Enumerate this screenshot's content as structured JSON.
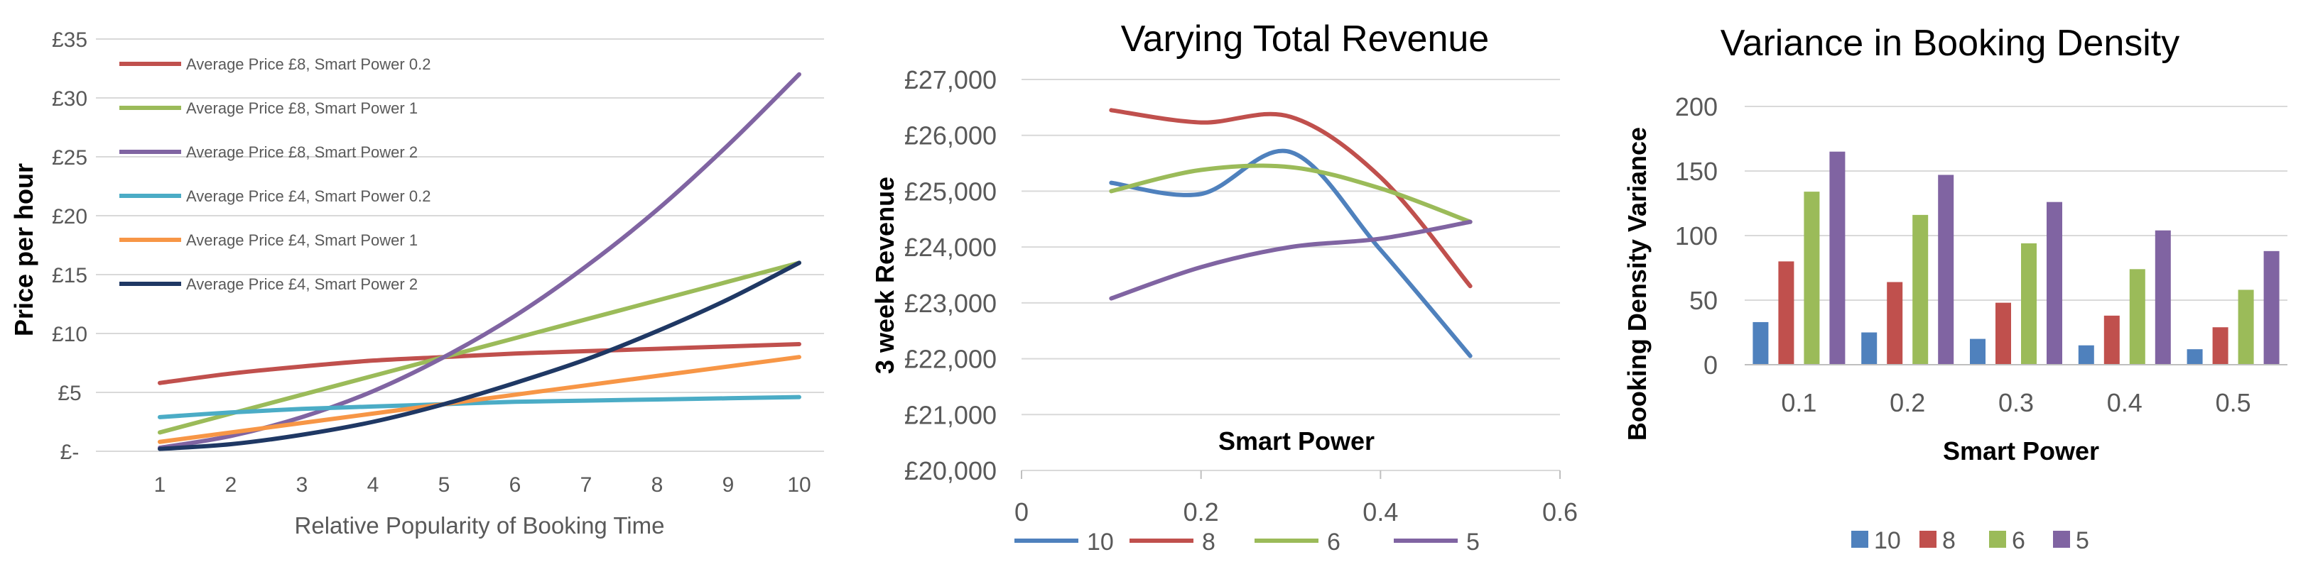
{
  "colors": {
    "red": "#c0504d",
    "green": "#9bbb59",
    "purple": "#8064a2",
    "cyan": "#4bacc6",
    "orange": "#f79646",
    "navy": "#1f3864",
    "blue": "#4f81bd",
    "grid": "#d9d9d9",
    "axis": "#bfbfbf",
    "tick": "#595959"
  },
  "chart_data": [
    {
      "type": "line",
      "title": "",
      "xlabel": "Relative Popularity of Booking Time",
      "ylabel": "Price per hour",
      "x": [
        1,
        2,
        3,
        4,
        5,
        6,
        7,
        8,
        9,
        10
      ],
      "xlim": [
        1,
        10
      ],
      "ylim": [
        0,
        35
      ],
      "y_ticks": [
        0,
        5,
        10,
        15,
        20,
        25,
        30,
        35
      ],
      "y_tick_labels": [
        "£-",
        "£5",
        "£10",
        "£15",
        "£20",
        "£25",
        "£30",
        "£35"
      ],
      "x_tick_labels": [
        "1",
        "2",
        "3",
        "4",
        "5",
        "6",
        "7",
        "8",
        "9",
        "10"
      ],
      "grid": true,
      "legend": "top-left",
      "series": [
        {
          "name": "Average Price £8, Smart Power 0.2",
          "color": "#c0504d",
          "values": [
            5.8,
            6.6,
            7.2,
            7.7,
            8.0,
            8.3,
            8.5,
            8.7,
            8.9,
            9.1
          ]
        },
        {
          "name": "Average Price £8, Smart Power 1",
          "color": "#9bbb59",
          "values": [
            1.6,
            3.2,
            4.8,
            6.4,
            8.0,
            9.6,
            11.2,
            12.8,
            14.4,
            16.0
          ]
        },
        {
          "name": "Average Price £8, Smart Power 2",
          "color": "#8064a2",
          "values": [
            0.3,
            1.3,
            2.9,
            5.1,
            8.0,
            11.5,
            15.7,
            20.5,
            26.0,
            32.0
          ]
        },
        {
          "name": "Average Price £4, Smart Power 0.2",
          "color": "#4bacc6",
          "values": [
            2.9,
            3.3,
            3.6,
            3.8,
            4.0,
            4.2,
            4.3,
            4.4,
            4.5,
            4.6
          ]
        },
        {
          "name": "Average Price £4, Smart Power 1",
          "color": "#f79646",
          "values": [
            0.8,
            1.6,
            2.4,
            3.2,
            4.0,
            4.8,
            5.6,
            6.4,
            7.2,
            8.0
          ]
        },
        {
          "name": "Average Price £4, Smart Power 2",
          "color": "#1f3864",
          "values": [
            0.2,
            0.6,
            1.4,
            2.5,
            4.0,
            5.8,
            7.8,
            10.2,
            12.9,
            16.0
          ]
        }
      ]
    },
    {
      "type": "line",
      "title": "Varying Total Revenue",
      "xlabel": "Smart Power",
      "ylabel": "3 week Revenue",
      "x": [
        0.1,
        0.2,
        0.3,
        0.4,
        0.5
      ],
      "xlim": [
        0,
        0.6
      ],
      "ylim": [
        20000,
        27000
      ],
      "x_ticks": [
        0,
        0.2,
        0.4,
        0.6
      ],
      "x_tick_labels": [
        "0",
        "0.2",
        "0.4",
        "0.6"
      ],
      "y_ticks": [
        20000,
        21000,
        22000,
        23000,
        24000,
        25000,
        26000,
        27000
      ],
      "y_tick_labels": [
        "£20,000",
        "£21,000",
        "£22,000",
        "£23,000",
        "£24,000",
        "£25,000",
        "£26,000",
        "£27,000"
      ],
      "grid": true,
      "smooth": true,
      "legend": "bottom",
      "series": [
        {
          "name": "10",
          "color": "#4f81bd",
          "values": [
            25150,
            24950,
            25700,
            23950,
            22050
          ]
        },
        {
          "name": "8",
          "color": "#c0504d",
          "values": [
            26450,
            26230,
            26330,
            25250,
            23300
          ]
        },
        {
          "name": "6",
          "color": "#9bbb59",
          "values": [
            25000,
            25380,
            25430,
            25050,
            24450
          ]
        },
        {
          "name": "5",
          "color": "#8064a2",
          "values": [
            23080,
            23640,
            24000,
            24150,
            24450
          ]
        }
      ]
    },
    {
      "type": "bar",
      "title": "Variance in Booking Density",
      "xlabel": "Smart Power",
      "ylabel": "Booking Density Variance",
      "categories": [
        "0.1",
        "0.2",
        "0.3",
        "0.4",
        "0.5"
      ],
      "ylim": [
        0,
        200
      ],
      "y_ticks": [
        0,
        50,
        100,
        150,
        200
      ],
      "y_tick_labels": [
        "0",
        "50",
        "100",
        "150",
        "200"
      ],
      "grid": true,
      "legend": "bottom",
      "series": [
        {
          "name": "10",
          "color": "#4f81bd",
          "values": [
            33,
            25,
            20,
            15,
            12
          ]
        },
        {
          "name": "8",
          "color": "#c0504d",
          "values": [
            80,
            64,
            48,
            38,
            29
          ]
        },
        {
          "name": "6",
          "color": "#9bbb59",
          "values": [
            134,
            116,
            94,
            74,
            58
          ]
        },
        {
          "name": "5",
          "color": "#8064a2",
          "values": [
            165,
            147,
            126,
            104,
            88
          ]
        }
      ]
    }
  ]
}
